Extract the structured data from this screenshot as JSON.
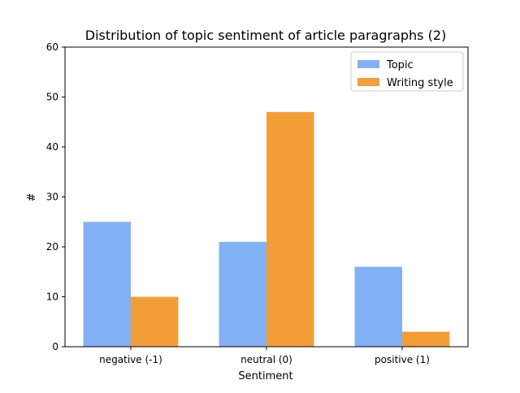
{
  "chart_data": {
    "type": "bar",
    "title": "Distribution of topic sentiment of article paragraphs (2)",
    "xlabel": "Sentiment",
    "ylabel": "#",
    "categories": [
      "negative (-1)",
      "neutral (0)",
      "positive (1)"
    ],
    "series": [
      {
        "name": "Topic",
        "color": "#82b1f6",
        "values": [
          25,
          21,
          16
        ]
      },
      {
        "name": "Writing style",
        "color": "#f29e38",
        "values": [
          10,
          47,
          3
        ]
      }
    ],
    "ylim": [
      0,
      60
    ],
    "yticks": [
      0,
      10,
      20,
      30,
      40,
      50,
      60
    ],
    "grid": false,
    "legend_position": "top-right"
  }
}
